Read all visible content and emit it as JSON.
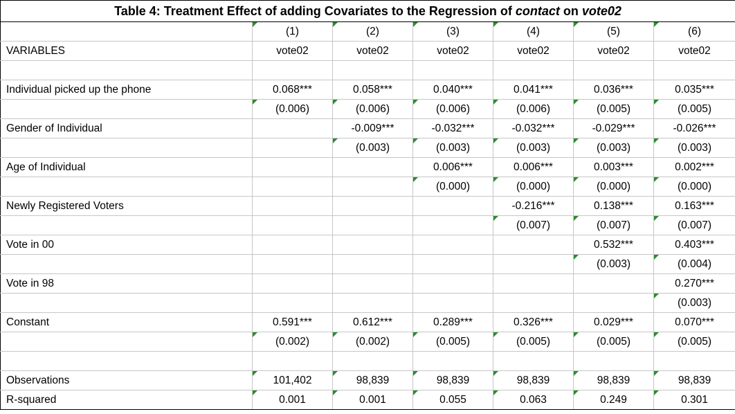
{
  "title": {
    "prefix": "Table 4: Treatment Effect of adding Covariates to the Regression of ",
    "em1": "contact",
    "mid": " on ",
    "em2": "vote02"
  },
  "header": {
    "col_numbers": [
      "(1)",
      "(2)",
      "(3)",
      "(4)",
      "(5)",
      "(6)"
    ],
    "variables_label": "VARIABLES",
    "dep_vars": [
      "vote02",
      "vote02",
      "vote02",
      "vote02",
      "vote02",
      "vote02"
    ]
  },
  "rows": [
    {
      "label": "",
      "cells": [
        "",
        "",
        "",
        "",
        "",
        ""
      ],
      "flags": [
        0,
        0,
        0,
        0,
        0,
        0
      ]
    },
    {
      "label": "Individual picked up the phone",
      "cells": [
        "0.068***",
        "0.058***",
        "0.040***",
        "0.041***",
        "0.036***",
        "0.035***"
      ],
      "flags": [
        0,
        0,
        0,
        0,
        0,
        0
      ]
    },
    {
      "label": "",
      "cells": [
        "(0.006)",
        "(0.006)",
        "(0.006)",
        "(0.006)",
        "(0.005)",
        "(0.005)"
      ],
      "flags": [
        1,
        1,
        1,
        1,
        1,
        1
      ]
    },
    {
      "label": "Gender of Individual",
      "cells": [
        "",
        "-0.009***",
        "-0.032***",
        "-0.032***",
        "-0.029***",
        "-0.026***"
      ],
      "flags": [
        0,
        0,
        0,
        0,
        0,
        0
      ]
    },
    {
      "label": "",
      "cells": [
        "",
        "(0.003)",
        "(0.003)",
        "(0.003)",
        "(0.003)",
        "(0.003)"
      ],
      "flags": [
        0,
        1,
        1,
        1,
        1,
        1
      ]
    },
    {
      "label": "Age of Individual",
      "cells": [
        "",
        "",
        "0.006***",
        "0.006***",
        "0.003***",
        "0.002***"
      ],
      "flags": [
        0,
        0,
        0,
        0,
        0,
        0
      ]
    },
    {
      "label": "",
      "cells": [
        "",
        "",
        "(0.000)",
        "(0.000)",
        "(0.000)",
        "(0.000)"
      ],
      "flags": [
        0,
        0,
        1,
        1,
        1,
        1
      ]
    },
    {
      "label": "Newly Registered Voters",
      "cells": [
        "",
        "",
        "",
        "-0.216***",
        "0.138***",
        "0.163***"
      ],
      "flags": [
        0,
        0,
        0,
        0,
        0,
        0
      ]
    },
    {
      "label": "",
      "cells": [
        "",
        "",
        "",
        "(0.007)",
        "(0.007)",
        "(0.007)"
      ],
      "flags": [
        0,
        0,
        0,
        1,
        1,
        1
      ]
    },
    {
      "label": "Vote in 00",
      "cells": [
        "",
        "",
        "",
        "",
        "0.532***",
        "0.403***"
      ],
      "flags": [
        0,
        0,
        0,
        0,
        0,
        0
      ]
    },
    {
      "label": "",
      "cells": [
        "",
        "",
        "",
        "",
        "(0.003)",
        "(0.004)"
      ],
      "flags": [
        0,
        0,
        0,
        0,
        1,
        1
      ]
    },
    {
      "label": "Vote in 98",
      "cells": [
        "",
        "",
        "",
        "",
        "",
        "0.270***"
      ],
      "flags": [
        0,
        0,
        0,
        0,
        0,
        0
      ]
    },
    {
      "label": "",
      "cells": [
        "",
        "",
        "",
        "",
        "",
        "(0.003)"
      ],
      "flags": [
        0,
        0,
        0,
        0,
        0,
        1
      ]
    },
    {
      "label": "Constant",
      "cells": [
        "0.591***",
        "0.612***",
        "0.289***",
        "0.326***",
        "0.029***",
        "0.070***"
      ],
      "flags": [
        0,
        0,
        0,
        0,
        0,
        0
      ]
    },
    {
      "label": "",
      "cells": [
        "(0.002)",
        "(0.002)",
        "(0.005)",
        "(0.005)",
        "(0.005)",
        "(0.005)"
      ],
      "flags": [
        1,
        1,
        1,
        1,
        1,
        1
      ]
    },
    {
      "label": "",
      "cells": [
        "",
        "",
        "",
        "",
        "",
        ""
      ],
      "flags": [
        0,
        0,
        0,
        0,
        0,
        0
      ]
    },
    {
      "label": "Observations",
      "cells": [
        "101,402",
        "98,839",
        "98,839",
        "98,839",
        "98,839",
        "98,839"
      ],
      "flags": [
        1,
        1,
        1,
        1,
        1,
        1
      ]
    },
    {
      "label": "R-squared",
      "cells": [
        "0.001",
        "0.001",
        "0.055",
        "0.063",
        "0.249",
        "0.301"
      ],
      "flags": [
        1,
        1,
        1,
        1,
        1,
        1
      ]
    }
  ],
  "header_flags": [
    1,
    1,
    1,
    1,
    1,
    1
  ],
  "colors": {
    "indicator": "#2e8b2e",
    "gridline": "#c6c6c6",
    "border": "#000000"
  }
}
